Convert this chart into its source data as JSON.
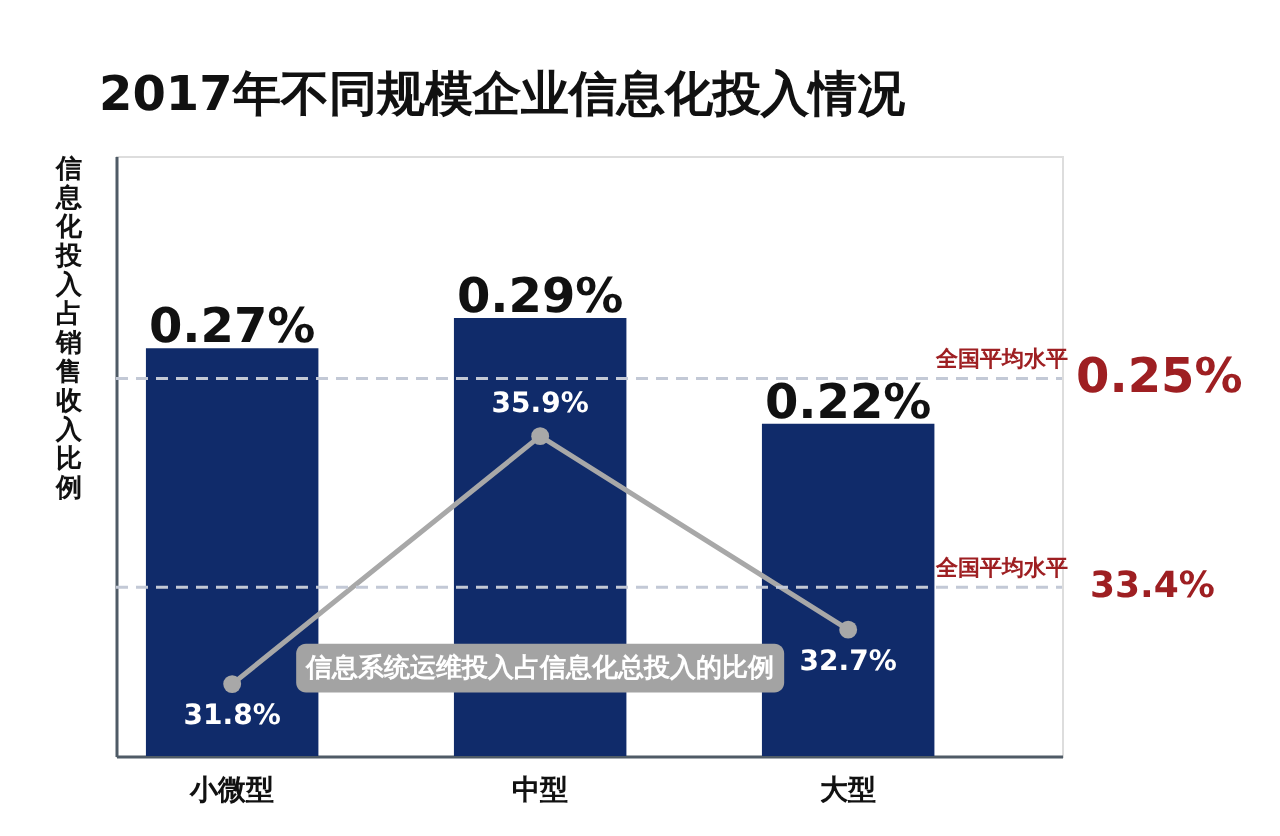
{
  "chart_data": {
    "type": "bar",
    "title": "2017年不同规模企业信息化投入情况",
    "ylabel": "信息化投入占销售收入比例",
    "categories": [
      "小微型",
      "中型",
      "大型"
    ],
    "series": [
      {
        "color": "#102b6a",
        "values": [
          0.27,
          0.29,
          0.22
        ],
        "value_labels": [
          "0.27%",
          "0.29%",
          "0.22%"
        ]
      },
      {
        "type": "line",
        "name": "信息系统运维投入占信息化总投入的比例",
        "axis": "y2",
        "color": "#a8a8a8",
        "values": [
          31.8,
          35.9,
          32.7
        ],
        "value_labels": [
          "31.8%",
          "35.9%",
          "32.7%"
        ]
      }
    ],
    "ref_lines": [
      {
        "axis": "y",
        "value": 0.25,
        "label": "全国平均水平",
        "color": "#c3c9d6",
        "line_style": "dashed"
      },
      {
        "axis": "y2",
        "value": 33.4,
        "label": "全国平均水平",
        "color": "#c3c9d6",
        "line_style": "dashed"
      }
    ],
    "annotations": [
      "0.25%",
      "33.4%"
    ],
    "marker": "circle",
    "tick_labels": "x"
  }
}
